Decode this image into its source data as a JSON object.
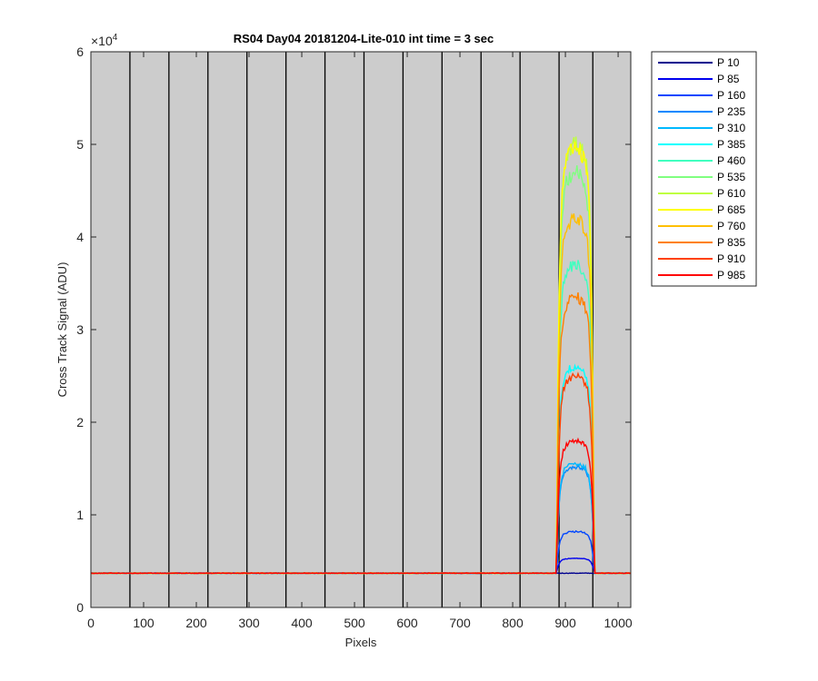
{
  "chart_data": {
    "type": "line",
    "title": "RS04 Day04 20181204-Lite-010 int time = 3 sec",
    "xlabel": "Pixels",
    "ylabel": "Cross Track Signal (ADU)",
    "xlim": [
      0,
      1024
    ],
    "ylim": [
      0,
      60000
    ],
    "x_ticks": [
      0,
      100,
      200,
      300,
      400,
      500,
      600,
      700,
      800,
      900,
      1000
    ],
    "y_ticks": [
      0,
      1,
      2,
      3,
      4,
      5,
      6
    ],
    "y_exponent_base": "×10",
    "y_exponent_power": "4",
    "background_color": "#cccccc",
    "grid": false,
    "legend_position": "outside-top-right",
    "vertical_lines_x": [
      74,
      148,
      222,
      296,
      370,
      444,
      518,
      592,
      666,
      740,
      814,
      888,
      952
    ],
    "baseline": 3700,
    "signal_region": [
      883,
      955
    ],
    "series": [
      {
        "name": "P 10",
        "color": "#00008f",
        "peak": 3700
      },
      {
        "name": "P 85",
        "color": "#0000ee",
        "peak": 5300
      },
      {
        "name": "P 160",
        "color": "#0046ff",
        "peak": 8200
      },
      {
        "name": "P 235",
        "color": "#0088ff",
        "peak": 15200
      },
      {
        "name": "P 310",
        "color": "#00b9ff",
        "peak": 15500
      },
      {
        "name": "P 385",
        "color": "#00ffff",
        "peak": 26000
      },
      {
        "name": "P 460",
        "color": "#40ffbf",
        "peak": 37000
      },
      {
        "name": "P 535",
        "color": "#80ff80",
        "peak": 47000
      },
      {
        "name": "P 610",
        "color": "#bfff40",
        "peak": 50000
      },
      {
        "name": "P 685",
        "color": "#ffff00",
        "peak": 49500
      },
      {
        "name": "P 760",
        "color": "#ffbf00",
        "peak": 42000
      },
      {
        "name": "P 835",
        "color": "#ff8000",
        "peak": 33500
      },
      {
        "name": "P 910",
        "color": "#ff4000",
        "peak": 25000
      },
      {
        "name": "P 985",
        "color": "#ff0000",
        "peak": 18000
      }
    ]
  }
}
